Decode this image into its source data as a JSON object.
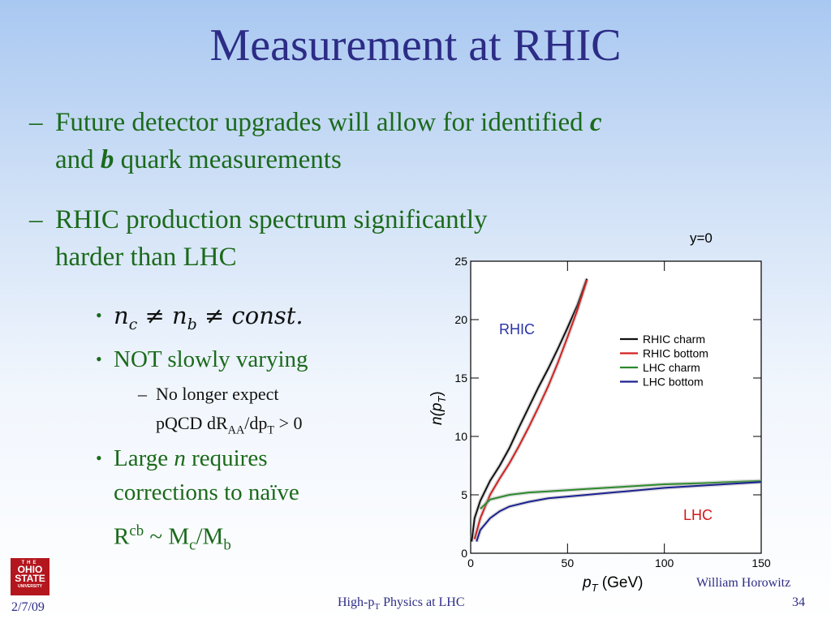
{
  "slide": {
    "title": "Measurement at RHIC",
    "bullets": [
      {
        "dash": "–",
        "line1_text": "Future detector upgrades will allow for identified ",
        "line1_em": "c",
        "line2_pre": "and ",
        "line2_em": "b",
        "line2_post": " quark measurements"
      },
      {
        "dash": "–",
        "line1": "RHIC production spectrum significantly",
        "line2": "harder than LHC"
      }
    ],
    "subbullets": {
      "dot": "•",
      "formula": "n",
      "formula_sub_c": "c",
      "neq": " ≠ ",
      "formula_n2": "n",
      "formula_sub_b": "b",
      "formula_const": "const.",
      "not_slowly": "NOT slowly varying",
      "no_longer_dash": "–",
      "no_longer_1": "No longer expect",
      "no_longer_2_pre": "pQCD dR",
      "no_longer_2_sub1": "AA",
      "no_longer_2_mid": "/dp",
      "no_longer_2_sub2": "T",
      "no_longer_2_post": " > 0",
      "large_pre": "Large ",
      "large_em": "n",
      "large_post": " requires",
      "large_line2": "corrections to naïve",
      "r_pre": "R",
      "r_sup": "cb",
      "r_mid": " ~ M",
      "r_sub1": "c",
      "r_slash": "/M",
      "r_sub2": "b"
    },
    "footer": {
      "date": "2/7/09",
      "center_pre": "High-p",
      "center_sub": "T",
      "center_post": " Physics at LHC",
      "author": "William Horowitz",
      "page": "34"
    },
    "logo": {
      "line1": "THE",
      "line2a": "OHIO",
      "line2b": "STATE",
      "line3": "UNIVERSITY"
    }
  },
  "chart_data": {
    "type": "line",
    "title": "y=0",
    "xlabel_main": "p",
    "xlabel_sub": "T",
    "xlabel_unit": " (GeV)",
    "ylabel_main": "n(p",
    "ylabel_sub": "T",
    "ylabel_close": ")",
    "xlim": [
      0,
      150
    ],
    "ylim": [
      0,
      25
    ],
    "xticks": [
      "0",
      "50",
      "100",
      "150"
    ],
    "yticks": [
      "0",
      "5",
      "10",
      "15",
      "20",
      "25"
    ],
    "legend_position": "top-right",
    "annotations": [
      {
        "text": "RHIC",
        "color": "#2a33a8"
      },
      {
        "text": "LHC",
        "color": "#d21818"
      }
    ],
    "series": [
      {
        "name": "RHIC charm",
        "color": "#111111",
        "x": [
          0.5,
          2,
          5,
          10,
          15,
          20,
          25,
          30,
          35,
          40,
          45,
          50,
          55,
          60
        ],
        "y": [
          1,
          3,
          4.5,
          6.2,
          7.5,
          9,
          10.8,
          12.5,
          14.2,
          15.8,
          17.5,
          19.3,
          21.2,
          23.5
        ]
      },
      {
        "name": "RHIC bottom",
        "color": "#d42020",
        "x": [
          2,
          5,
          10,
          15,
          20,
          25,
          30,
          35,
          40,
          45,
          50,
          55,
          60
        ],
        "y": [
          1.2,
          3,
          5,
          6.4,
          7.7,
          9.2,
          10.8,
          12.5,
          14.3,
          16.3,
          18.5,
          20.8,
          23.4
        ]
      },
      {
        "name": "LHC charm",
        "color": "#2b8a2b",
        "x": [
          5,
          10,
          20,
          30,
          40,
          60,
          80,
          100,
          120,
          150
        ],
        "y": [
          3.8,
          4.6,
          5.0,
          5.2,
          5.3,
          5.5,
          5.7,
          5.9,
          6.0,
          6.2
        ]
      },
      {
        "name": "LHC bottom",
        "color": "#1a2090",
        "x": [
          3,
          5,
          10,
          15,
          20,
          30,
          40,
          60,
          80,
          100,
          120,
          150
        ],
        "y": [
          1,
          2,
          3,
          3.6,
          4.0,
          4.4,
          4.7,
          5.0,
          5.3,
          5.6,
          5.8,
          6.1
        ]
      }
    ]
  }
}
